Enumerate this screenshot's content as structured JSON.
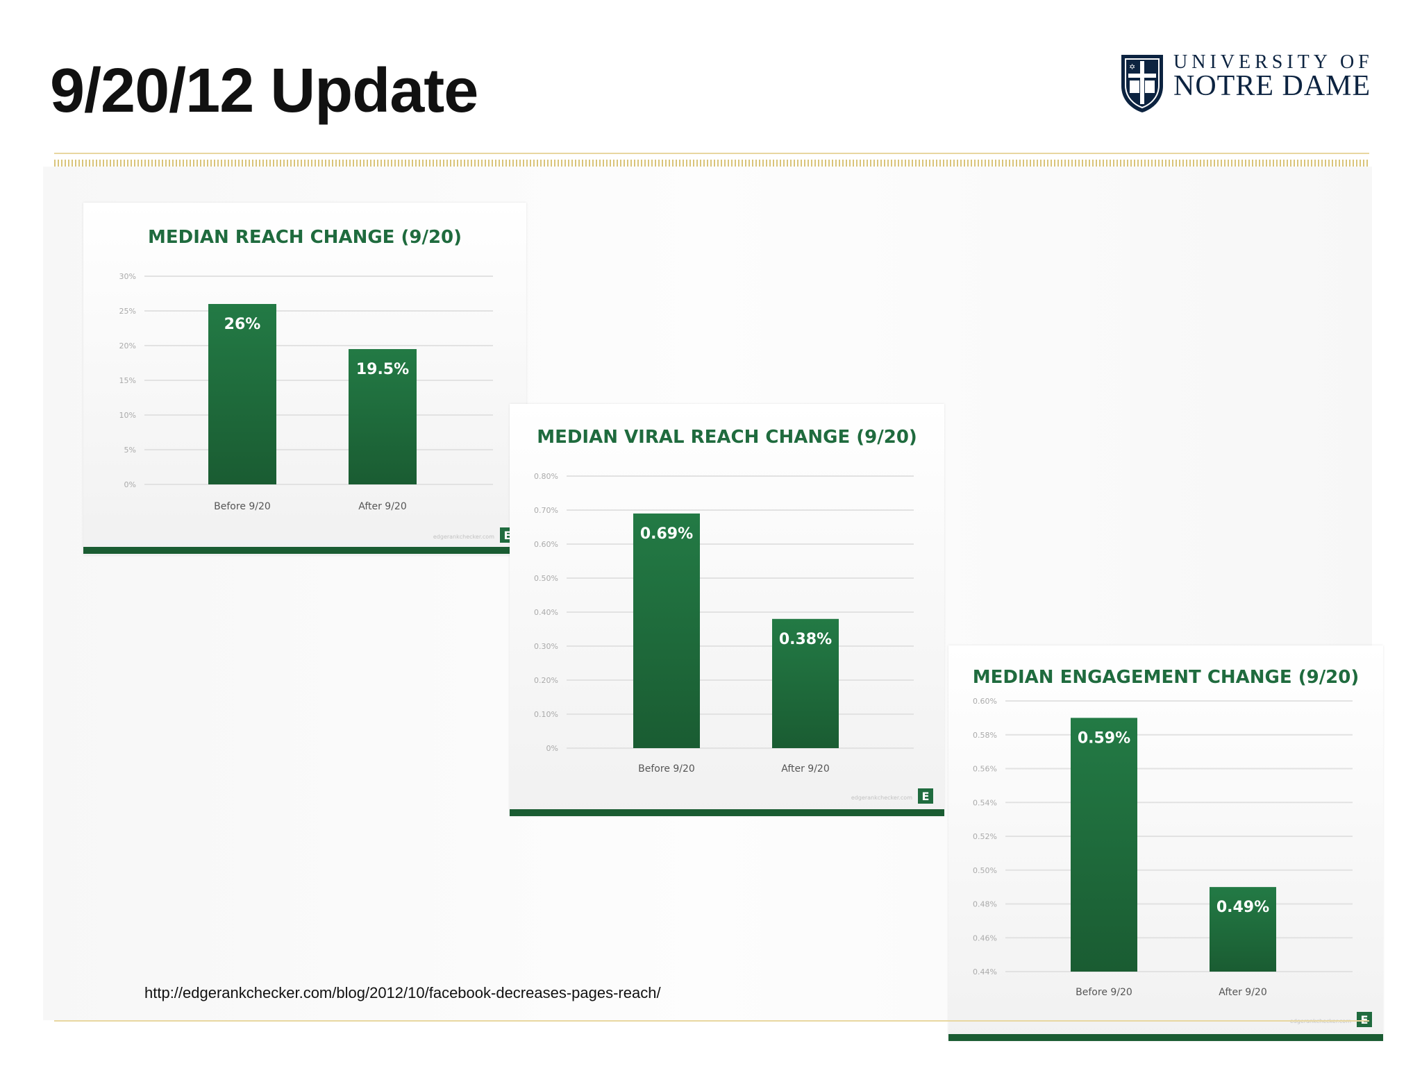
{
  "slide": {
    "title": "9/20/12 Update",
    "source_url": "http://edgerankchecker.com/blog/2012/10/facebook-decreases-pages-reach/"
  },
  "logo": {
    "line1": "UNIVERSITY OF",
    "line2": "NOTRE DAME",
    "navy": "#0c2340",
    "icon": "notre-dame-shield-icon"
  },
  "colors": {
    "bar_dark": "#1a5c32",
    "bar_light": "#237a45",
    "title_green": "#1f6b3e",
    "accent_gold": "#d9c47a"
  },
  "chart_data": [
    {
      "type": "bar",
      "title": "MEDIAN REACH CHANGE (9/20)",
      "categories": [
        "Before 9/20",
        "After 9/20"
      ],
      "values": [
        26,
        19.5
      ],
      "labels": [
        "26%",
        "19.5%"
      ],
      "yticks": [
        "0%",
        "5%",
        "10%",
        "15%",
        "20%",
        "25%",
        "30%"
      ],
      "ylim": [
        0,
        30
      ],
      "grid": true,
      "footer_text": "edgerankchecker.com",
      "brand_mark": "E"
    },
    {
      "type": "bar",
      "title": "MEDIAN VIRAL REACH CHANGE (9/20)",
      "categories": [
        "Before 9/20",
        "After 9/20"
      ],
      "values": [
        0.69,
        0.38
      ],
      "labels": [
        "0.69%",
        "0.38%"
      ],
      "yticks": [
        "0%",
        "0.10%",
        "0.20%",
        "0.30%",
        "0.40%",
        "0.50%",
        "0.60%",
        "0.70%",
        "0.80%"
      ],
      "ylim": [
        0,
        0.8
      ],
      "grid": true,
      "footer_text": "edgerankchecker.com",
      "brand_mark": "E"
    },
    {
      "type": "bar",
      "title": "MEDIAN ENGAGEMENT CHANGE (9/20)",
      "categories": [
        "Before 9/20",
        "After 9/20"
      ],
      "values": [
        0.59,
        0.49
      ],
      "labels": [
        "0.59%",
        "0.49%"
      ],
      "yticks": [
        "0.44%",
        "0.46%",
        "0.48%",
        "0.50%",
        "0.52%",
        "0.54%",
        "0.56%",
        "0.58%",
        "0.60%"
      ],
      "ylim": [
        0.44,
        0.6
      ],
      "grid": true,
      "footer_text": "edgerankchecker.com",
      "brand_mark": "E"
    }
  ]
}
